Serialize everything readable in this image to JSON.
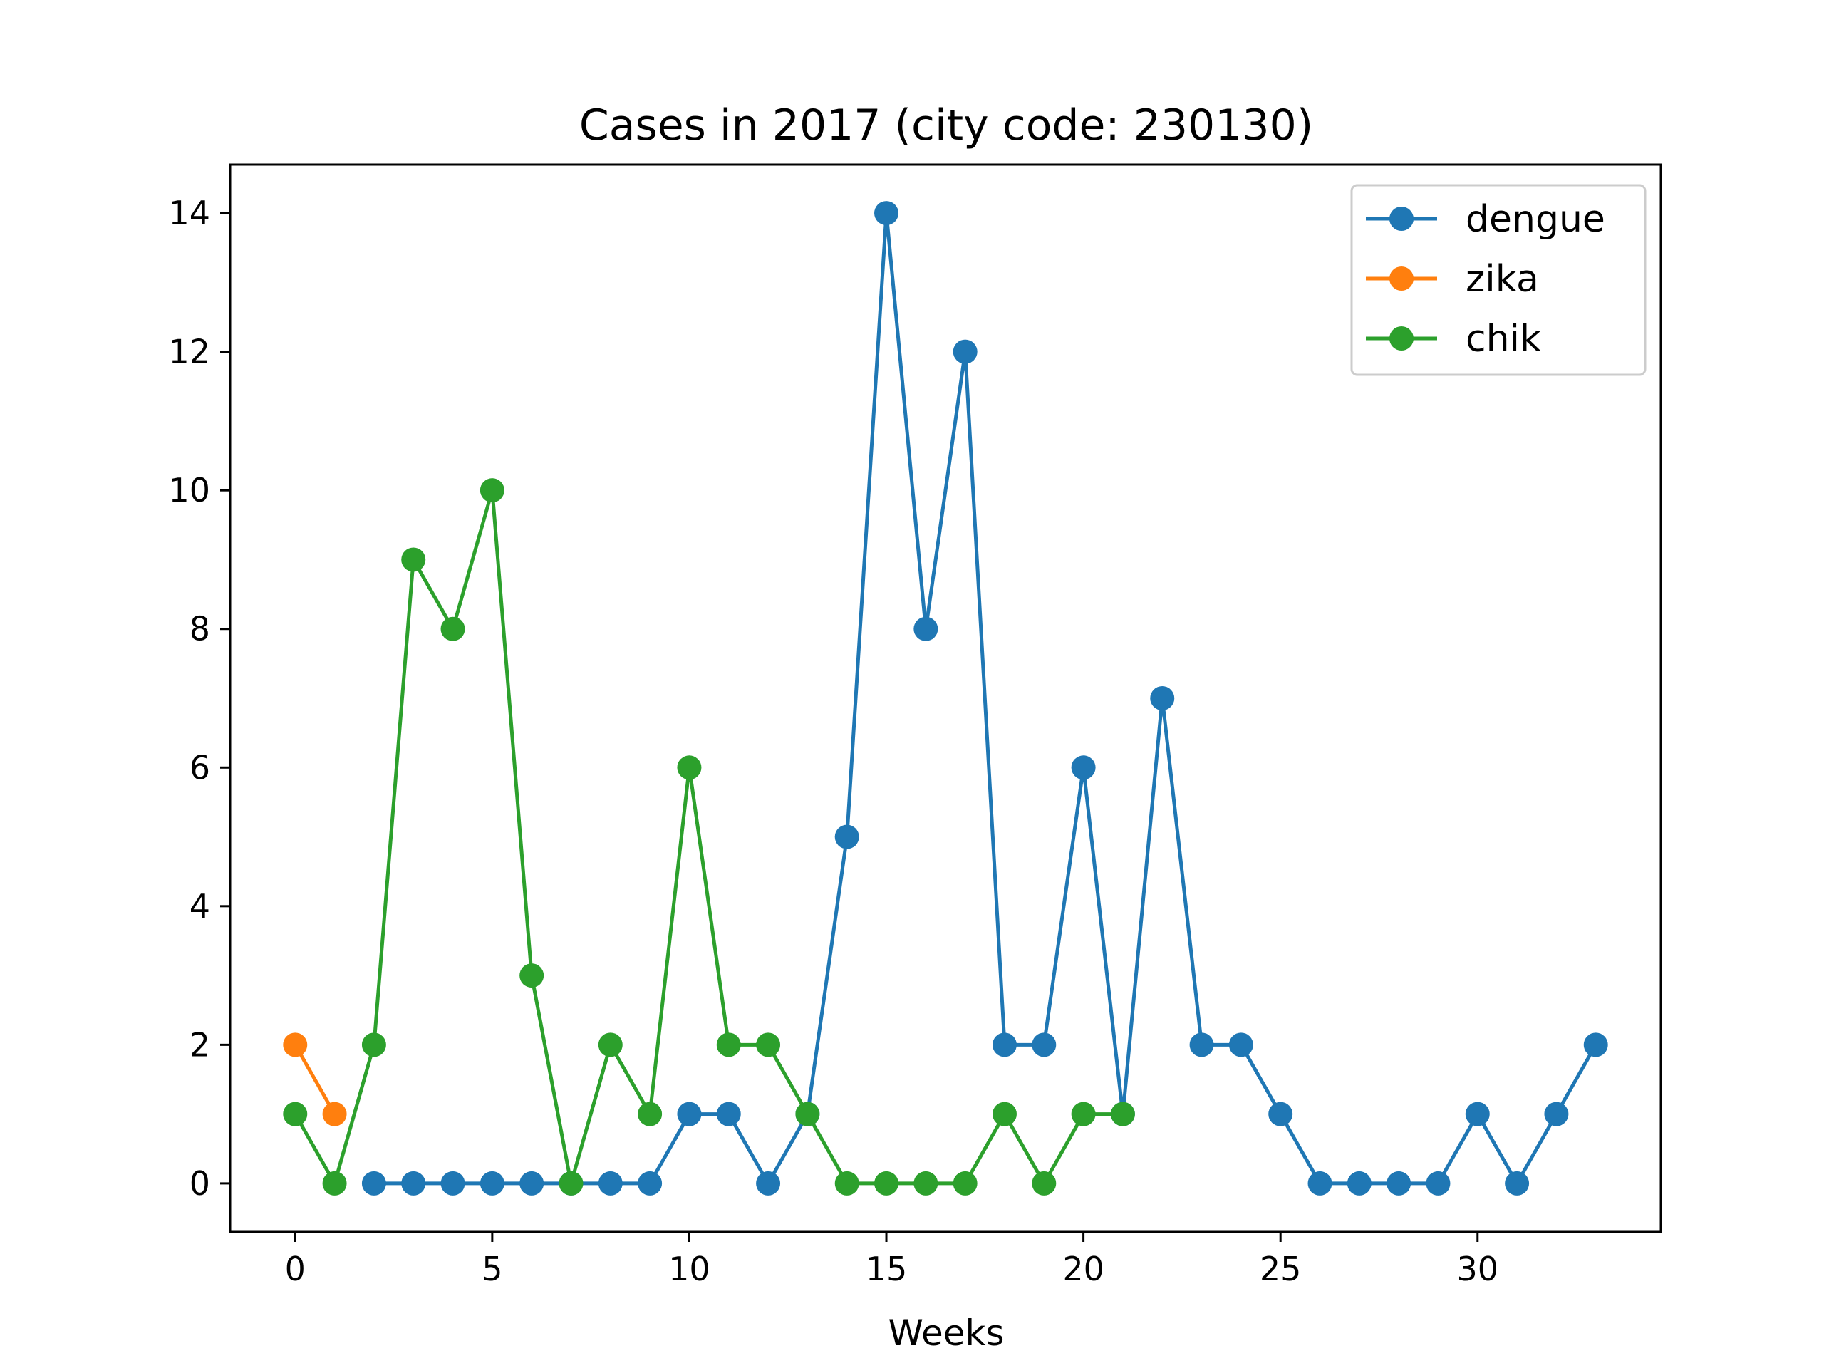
{
  "chart_data": {
    "type": "line",
    "title": "Cases in 2017 (city code: 230130)",
    "xlabel": "Weeks",
    "ylabel": "",
    "xlim": [
      -1.65,
      34.65
    ],
    "ylim": [
      -0.7,
      14.7
    ],
    "xticks": [
      0,
      5,
      10,
      15,
      20,
      25,
      30
    ],
    "yticks": [
      0,
      2,
      4,
      6,
      8,
      10,
      12,
      14
    ],
    "grid": false,
    "legend_position": "top-right",
    "series": [
      {
        "name": "dengue",
        "color": "#1f77b4",
        "x": [
          2,
          3,
          4,
          5,
          6,
          7,
          8,
          9,
          10,
          11,
          12,
          13,
          14,
          15,
          16,
          17,
          18,
          19,
          20,
          21,
          22,
          23,
          24,
          25,
          26,
          27,
          28,
          29,
          30,
          31,
          32,
          33
        ],
        "values": [
          0,
          0,
          0,
          0,
          0,
          0,
          0,
          0,
          1,
          1,
          0,
          1,
          5,
          14,
          8,
          12,
          2,
          2,
          6,
          1,
          7,
          2,
          2,
          1,
          0,
          0,
          0,
          0,
          1,
          0,
          1,
          2
        ]
      },
      {
        "name": "zika",
        "color": "#ff7f0e",
        "x": [
          0,
          1
        ],
        "values": [
          2,
          1
        ]
      },
      {
        "name": "chik",
        "color": "#2ca02c",
        "x": [
          0,
          1,
          2,
          3,
          4,
          5,
          6,
          7,
          8,
          9,
          10,
          11,
          12,
          13,
          14,
          15,
          16,
          17,
          18,
          19,
          20,
          21
        ],
        "values": [
          1,
          0,
          2,
          9,
          8,
          10,
          3,
          0,
          2,
          1,
          6,
          2,
          2,
          1,
          0,
          0,
          0,
          0,
          1,
          0,
          1,
          1
        ]
      }
    ]
  }
}
